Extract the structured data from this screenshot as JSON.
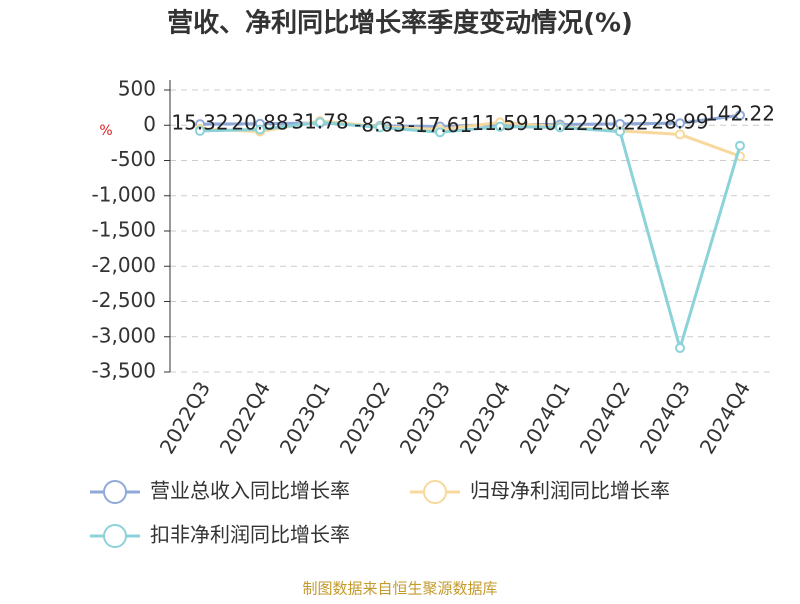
{
  "chart_data": {
    "type": "line",
    "title": "营收、净利同比增长率季度变动情况(%)",
    "y_unit": "%",
    "categories": [
      "2022Q3",
      "2022Q4",
      "2023Q1",
      "2023Q2",
      "2023Q3",
      "2023Q4",
      "2024Q1",
      "2024Q2",
      "2024Q3",
      "2024Q4"
    ],
    "series": [
      {
        "name": "营业总收入同比增长率",
        "color": "#8fa9d9",
        "values": [
          15.32,
          20.88,
          31.78,
          -8.63,
          -17.61,
          11.59,
          10.22,
          20.22,
          28.99,
          142.22
        ]
      },
      {
        "name": "归母净利润同比增长率",
        "color": "#f8d89c",
        "values": [
          -50,
          -90,
          60,
          -20,
          -60,
          40,
          -20,
          -80,
          -130,
          -440
        ]
      },
      {
        "name": "扣非净利润同比增长率",
        "color": "#8bd3d9",
        "values": [
          -80,
          -60,
          40,
          -30,
          -100,
          -20,
          -30,
          -90,
          -3160,
          -290
        ]
      }
    ],
    "ylim": [
      -3500,
      500
    ],
    "yticks": [
      500,
      0,
      -500,
      {
        "value": -1000,
        "label": "-1,000"
      },
      {
        "value": -1500,
        "label": "-1,500"
      },
      {
        "value": -2000,
        "label": "-2,000"
      },
      {
        "value": -2500,
        "label": "-2,500"
      },
      {
        "value": -3000,
        "label": "-3,000"
      },
      {
        "value": -3500,
        "label": "-3,500"
      }
    ],
    "grid": true,
    "source": "制图数据来自恒生聚源数据库"
  }
}
